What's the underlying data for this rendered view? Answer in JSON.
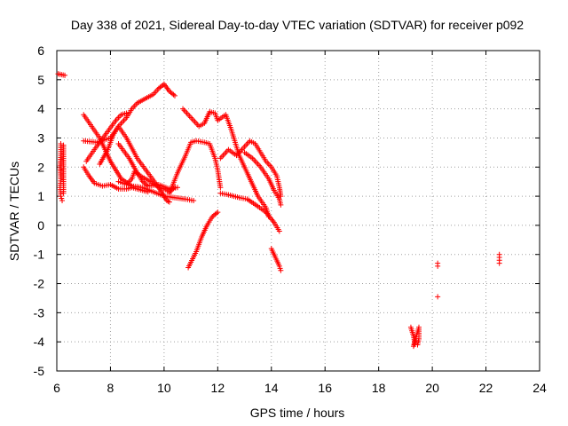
{
  "chart_data": {
    "type": "scatter",
    "title": "Day 338 of 2021, Sidereal Day-to-day VTEC variation (SDTVAR) for receiver p092",
    "xlabel": "GPS time / hours",
    "ylabel": "SDTVAR / TECUs",
    "xlim": [
      6,
      24
    ],
    "ylim": [
      -5,
      6
    ],
    "xticks": [
      6,
      8,
      10,
      12,
      14,
      16,
      18,
      20,
      22,
      24
    ],
    "yticks": [
      -5,
      -4,
      -3,
      -2,
      -1,
      0,
      1,
      2,
      3,
      4,
      5,
      6
    ],
    "xtick_labels": [
      "6",
      "8",
      "10",
      "12",
      "14",
      "16",
      "18",
      "20",
      "22",
      "24"
    ],
    "ytick_labels": [
      "-5",
      "-4",
      "-3",
      "-2",
      "-1",
      "0",
      "1",
      "2",
      "3",
      "4",
      "5",
      "6"
    ],
    "grid": true,
    "marker": "+",
    "marker_color": "#ff0000",
    "series": [
      {
        "segments": [
          [
            [
              6.05,
              5.2
            ],
            [
              6.3,
              5.15
            ]
          ],
          [
            [
              6.15,
              2.8
            ],
            [
              6.15,
              2.4
            ],
            [
              6.12,
              2.0
            ],
            [
              6.15,
              1.6
            ],
            [
              6.12,
              1.3
            ],
            [
              6.15,
              1.0
            ],
            [
              6.2,
              0.85
            ]
          ],
          [
            [
              6.25,
              2.75
            ],
            [
              6.25,
              2.3
            ],
            [
              6.25,
              1.9
            ],
            [
              6.25,
              1.5
            ],
            [
              6.25,
              1.1
            ]
          ]
        ]
      },
      {
        "segments": [
          [
            [
              7.0,
              3.8
            ],
            [
              7.3,
              3.4
            ],
            [
              7.6,
              3.0
            ],
            [
              7.8,
              2.6
            ],
            [
              8.0,
              2.2
            ],
            [
              8.4,
              1.6
            ],
            [
              8.8,
              1.35
            ],
            [
              9.2,
              1.3
            ],
            [
              9.6,
              1.15
            ],
            [
              10.0,
              1.0
            ],
            [
              10.4,
              0.95
            ],
            [
              10.8,
              0.9
            ],
            [
              11.1,
              0.85
            ]
          ],
          [
            [
              7.0,
              2.9
            ],
            [
              7.5,
              2.85
            ],
            [
              8.0,
              3.0
            ],
            [
              8.3,
              3.4
            ],
            [
              8.6,
              3.0
            ],
            [
              9.0,
              2.3
            ],
            [
              9.4,
              1.8
            ],
            [
              9.8,
              1.3
            ],
            [
              10.1,
              0.85
            ],
            [
              10.2,
              0.8
            ]
          ],
          [
            [
              7.0,
              2.0
            ],
            [
              7.2,
              1.7
            ],
            [
              7.4,
              1.45
            ],
            [
              7.7,
              1.35
            ],
            [
              8.0,
              1.4
            ],
            [
              8.3,
              1.25
            ],
            [
              8.6,
              1.25
            ],
            [
              8.8,
              1.3
            ],
            [
              9.2,
              1.2
            ],
            [
              9.4,
              1.15
            ]
          ],
          [
            [
              7.1,
              2.2
            ],
            [
              7.4,
              2.6
            ],
            [
              7.8,
              3.1
            ],
            [
              8.2,
              3.6
            ],
            [
              8.4,
              3.8
            ],
            [
              8.6,
              3.85
            ]
          ],
          [
            [
              7.6,
              2.1
            ],
            [
              7.9,
              2.6
            ],
            [
              8.1,
              3.1
            ],
            [
              8.3,
              3.4
            ],
            [
              8.6,
              3.7
            ],
            [
              8.8,
              4.0
            ],
            [
              9.0,
              4.2
            ],
            [
              9.3,
              4.35
            ],
            [
              9.6,
              4.5
            ],
            [
              9.8,
              4.7
            ],
            [
              10.0,
              4.85
            ],
            [
              10.2,
              4.6
            ],
            [
              10.4,
              4.45
            ]
          ],
          [
            [
              8.3,
              2.8
            ],
            [
              8.7,
              2.3
            ],
            [
              9.0,
              1.8
            ],
            [
              9.2,
              1.5
            ],
            [
              9.4,
              1.35
            ],
            [
              9.8,
              1.4
            ],
            [
              10.2,
              1.25
            ],
            [
              10.5,
              1.3
            ]
          ],
          [
            [
              8.3,
              1.5
            ],
            [
              8.6,
              1.4
            ],
            [
              8.8,
              1.6
            ],
            [
              8.9,
              1.85
            ],
            [
              9.2,
              1.65
            ],
            [
              9.5,
              1.5
            ],
            [
              9.8,
              1.3
            ],
            [
              10.0,
              1.25
            ],
            [
              10.2,
              1.15
            ],
            [
              10.4,
              1.3
            ]
          ]
        ]
      },
      {
        "segments": [
          [
            [
              10.2,
              1.1
            ],
            [
              10.5,
              1.8
            ],
            [
              10.8,
              2.4
            ],
            [
              11.0,
              2.85
            ],
            [
              11.2,
              2.9
            ],
            [
              11.5,
              2.85
            ],
            [
              11.7,
              2.8
            ],
            [
              11.9,
              2.3
            ],
            [
              12.0,
              1.9
            ],
            [
              12.1,
              1.3
            ]
          ],
          [
            [
              10.7,
              4.0
            ],
            [
              11.0,
              3.7
            ],
            [
              11.3,
              3.4
            ],
            [
              11.5,
              3.5
            ],
            [
              11.7,
              3.9
            ],
            [
              11.9,
              3.85
            ],
            [
              12.0,
              3.6
            ],
            [
              12.3,
              3.8
            ],
            [
              12.5,
              3.3
            ],
            [
              12.8,
              2.4
            ],
            [
              13.1,
              1.8
            ],
            [
              13.3,
              1.4
            ],
            [
              13.5,
              1.0
            ],
            [
              13.8,
              0.6
            ],
            [
              13.9,
              0.3
            ]
          ],
          [
            [
              10.9,
              -1.45
            ],
            [
              11.2,
              -0.9
            ],
            [
              11.4,
              -0.4
            ],
            [
              11.6,
              0.0
            ],
            [
              11.8,
              0.3
            ],
            [
              12.0,
              0.45
            ]
          ],
          [
            [
              12.1,
              1.1
            ],
            [
              12.4,
              1.05
            ],
            [
              12.8,
              0.95
            ],
            [
              13.1,
              0.9
            ],
            [
              13.5,
              0.65
            ],
            [
              13.8,
              0.45
            ],
            [
              14.1,
              0.1
            ],
            [
              14.3,
              -0.2
            ]
          ],
          [
            [
              12.1,
              2.3
            ],
            [
              12.4,
              2.6
            ],
            [
              12.7,
              2.4
            ],
            [
              13.0,
              2.7
            ],
            [
              13.2,
              2.9
            ],
            [
              13.4,
              2.8
            ],
            [
              13.6,
              2.5
            ],
            [
              13.8,
              2.2
            ],
            [
              14.0,
              2.0
            ],
            [
              14.2,
              1.7
            ],
            [
              14.3,
              1.3
            ],
            [
              14.35,
              1.0
            ]
          ],
          [
            [
              13.0,
              2.5
            ],
            [
              13.3,
              2.3
            ],
            [
              13.6,
              2.0
            ],
            [
              13.9,
              1.6
            ],
            [
              14.1,
              1.2
            ],
            [
              14.3,
              0.9
            ],
            [
              14.35,
              0.7
            ]
          ],
          [
            [
              14.0,
              -0.8
            ],
            [
              14.15,
              -1.1
            ],
            [
              14.3,
              -1.4
            ],
            [
              14.35,
              -1.55
            ]
          ]
        ]
      },
      {
        "segments": [
          [
            [
              19.2,
              -3.5
            ],
            [
              19.3,
              -3.8
            ],
            [
              19.35,
              -4.05
            ],
            [
              19.3,
              -4.15
            ],
            [
              19.5,
              -3.5
            ],
            [
              19.5,
              -3.9
            ],
            [
              19.45,
              -4.1
            ]
          ],
          [
            [
              20.2,
              -1.3
            ],
            [
              20.2,
              -1.4
            ]
          ],
          [
            [
              20.2,
              -2.45
            ]
          ],
          [
            [
              22.5,
              -1.0
            ],
            [
              22.5,
              -1.1
            ],
            [
              22.5,
              -1.2
            ],
            [
              22.5,
              -1.3
            ]
          ]
        ]
      }
    ]
  }
}
